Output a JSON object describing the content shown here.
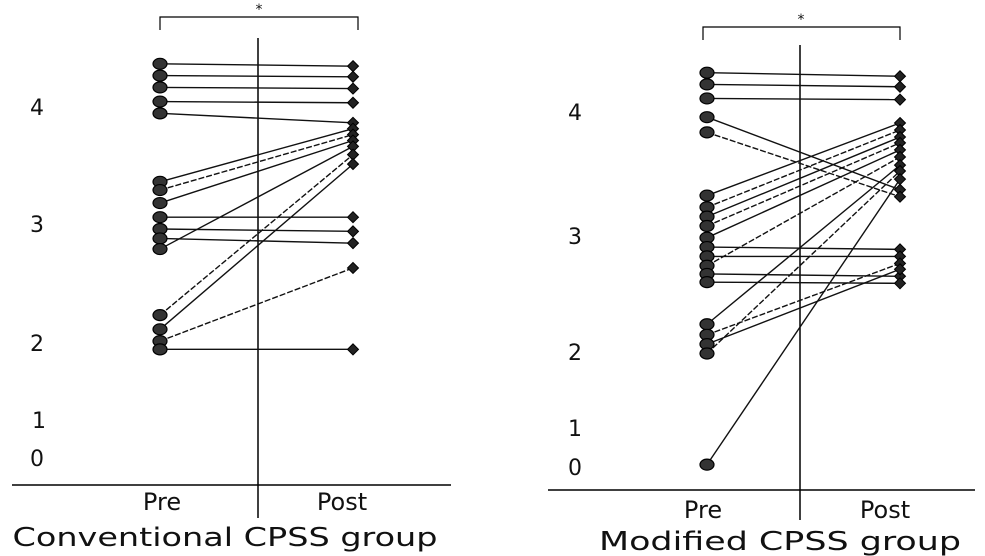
{
  "chart_data": [
    {
      "type": "line",
      "title": "Conventional CPSS group",
      "categories": [
        "Pre",
        "Post"
      ],
      "significance_marker": "*",
      "y_ticks": [
        "4",
        "3",
        "2",
        "1",
        "0"
      ],
      "ylim": [
        0,
        4.5
      ],
      "grid": false,
      "legend": "none",
      "series": [
        {
          "values": [
            4.4,
            4.38
          ]
        },
        {
          "values": [
            4.3,
            4.29
          ]
        },
        {
          "values": [
            4.2,
            4.19
          ]
        },
        {
          "values": [
            4.08,
            4.07
          ]
        },
        {
          "values": [
            3.98,
            3.9
          ]
        },
        {
          "values": [
            3.4,
            3.85
          ]
        },
        {
          "values": [
            3.33,
            3.8
          ]
        },
        {
          "values": [
            3.22,
            3.75
          ]
        },
        {
          "values": [
            3.1,
            3.1
          ]
        },
        {
          "values": [
            3.0,
            2.98
          ]
        },
        {
          "values": [
            2.92,
            2.88
          ]
        },
        {
          "values": [
            2.83,
            3.7
          ]
        },
        {
          "values": [
            2.27,
            3.63
          ]
        },
        {
          "values": [
            2.15,
            3.55
          ]
        },
        {
          "values": [
            2.05,
            2.67
          ]
        },
        {
          "values": [
            1.98,
            1.98
          ]
        }
      ]
    },
    {
      "type": "line",
      "title": "Modified CPSS group",
      "categories": [
        "Pre",
        "Post"
      ],
      "significance_marker": "*",
      "y_ticks": [
        "4",
        "3",
        "2",
        "1",
        "0"
      ],
      "ylim": [
        0,
        4.5
      ],
      "grid": false,
      "legend": "none",
      "series": [
        {
          "values": [
            4.37,
            4.34
          ]
        },
        {
          "values": [
            4.27,
            4.25
          ]
        },
        {
          "values": [
            4.15,
            4.14
          ]
        },
        {
          "values": [
            3.99,
            3.37
          ]
        },
        {
          "values": [
            3.86,
            3.31
          ]
        },
        {
          "values": [
            3.32,
            3.94
          ]
        },
        {
          "values": [
            3.22,
            3.88
          ]
        },
        {
          "values": [
            3.14,
            3.82
          ]
        },
        {
          "values": [
            3.06,
            3.77
          ]
        },
        {
          "values": [
            2.96,
            3.71
          ]
        },
        {
          "values": [
            2.88,
            2.86
          ]
        },
        {
          "values": [
            2.8,
            2.8
          ]
        },
        {
          "values": [
            2.72,
            3.65
          ]
        },
        {
          "values": [
            2.65,
            2.63
          ]
        },
        {
          "values": [
            2.58,
            2.57
          ]
        },
        {
          "values": [
            2.22,
            3.58
          ]
        },
        {
          "values": [
            2.13,
            2.74
          ]
        },
        {
          "values": [
            2.05,
            2.69
          ]
        },
        {
          "values": [
            1.97,
            3.53
          ]
        },
        {
          "values": [
            1.02,
            3.46
          ]
        }
      ]
    }
  ]
}
